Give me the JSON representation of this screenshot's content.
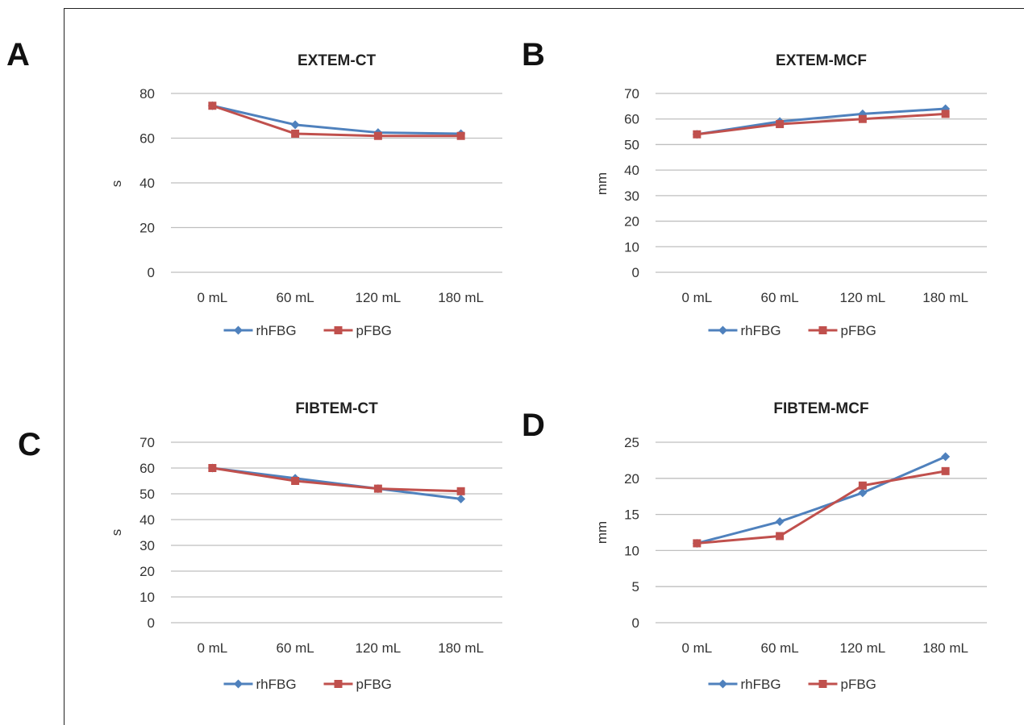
{
  "panel_letters": [
    "A",
    "B",
    "C",
    "D"
  ],
  "chart_data": [
    {
      "type": "line",
      "title": "EXTEM-CT",
      "ylabel": "s",
      "xlabel": "",
      "categories": [
        "0 mL",
        "60 mL",
        "120 mL",
        "180 mL"
      ],
      "ylim": [
        0,
        80
      ],
      "yticks": [
        0,
        20,
        40,
        60,
        80
      ],
      "grid": true,
      "legend_position": "bottom",
      "series": [
        {
          "name": "rhFBG",
          "values": [
            74.5,
            66,
            62.5,
            62
          ],
          "color": "#4f81bd",
          "marker": "diamond"
        },
        {
          "name": "pFBG",
          "values": [
            74.5,
            62,
            61,
            61
          ],
          "color": "#c0504d",
          "marker": "square"
        }
      ]
    },
    {
      "type": "line",
      "title": "EXTEM-MCF",
      "ylabel": "mm",
      "xlabel": "",
      "categories": [
        "0 mL",
        "60 mL",
        "120 mL",
        "180 mL"
      ],
      "ylim": [
        0,
        70
      ],
      "yticks": [
        0,
        10,
        20,
        30,
        40,
        50,
        60,
        70
      ],
      "grid": true,
      "legend_position": "bottom",
      "series": [
        {
          "name": "rhFBG",
          "values": [
            54,
            59,
            62,
            64
          ],
          "color": "#4f81bd",
          "marker": "diamond"
        },
        {
          "name": "pFBG",
          "values": [
            54,
            58,
            60,
            62
          ],
          "color": "#c0504d",
          "marker": "square"
        }
      ]
    },
    {
      "type": "line",
      "title": "FIBTEM-CT",
      "ylabel": "s",
      "xlabel": "",
      "categories": [
        "0 mL",
        "60 mL",
        "120 mL",
        "180 mL"
      ],
      "ylim": [
        0,
        70
      ],
      "yticks": [
        0,
        10,
        20,
        30,
        40,
        50,
        60,
        70
      ],
      "grid": true,
      "legend_position": "bottom",
      "series": [
        {
          "name": "rhFBG",
          "values": [
            60,
            56,
            52,
            48
          ],
          "color": "#4f81bd",
          "marker": "diamond"
        },
        {
          "name": "pFBG",
          "values": [
            60,
            55,
            52,
            51
          ],
          "color": "#c0504d",
          "marker": "square"
        }
      ]
    },
    {
      "type": "line",
      "title": "FIBTEM-MCF",
      "ylabel": "mm",
      "xlabel": "",
      "categories": [
        "0 mL",
        "60 mL",
        "120 mL",
        "180 mL"
      ],
      "ylim": [
        0,
        25
      ],
      "yticks": [
        0,
        5,
        10,
        15,
        20,
        25
      ],
      "grid": true,
      "legend_position": "bottom",
      "series": [
        {
          "name": "rhFBG",
          "values": [
            11,
            14,
            18,
            23
          ],
          "color": "#4f81bd",
          "marker": "diamond"
        },
        {
          "name": "pFBG",
          "values": [
            11,
            12,
            19,
            21
          ],
          "color": "#c0504d",
          "marker": "square"
        }
      ]
    }
  ]
}
